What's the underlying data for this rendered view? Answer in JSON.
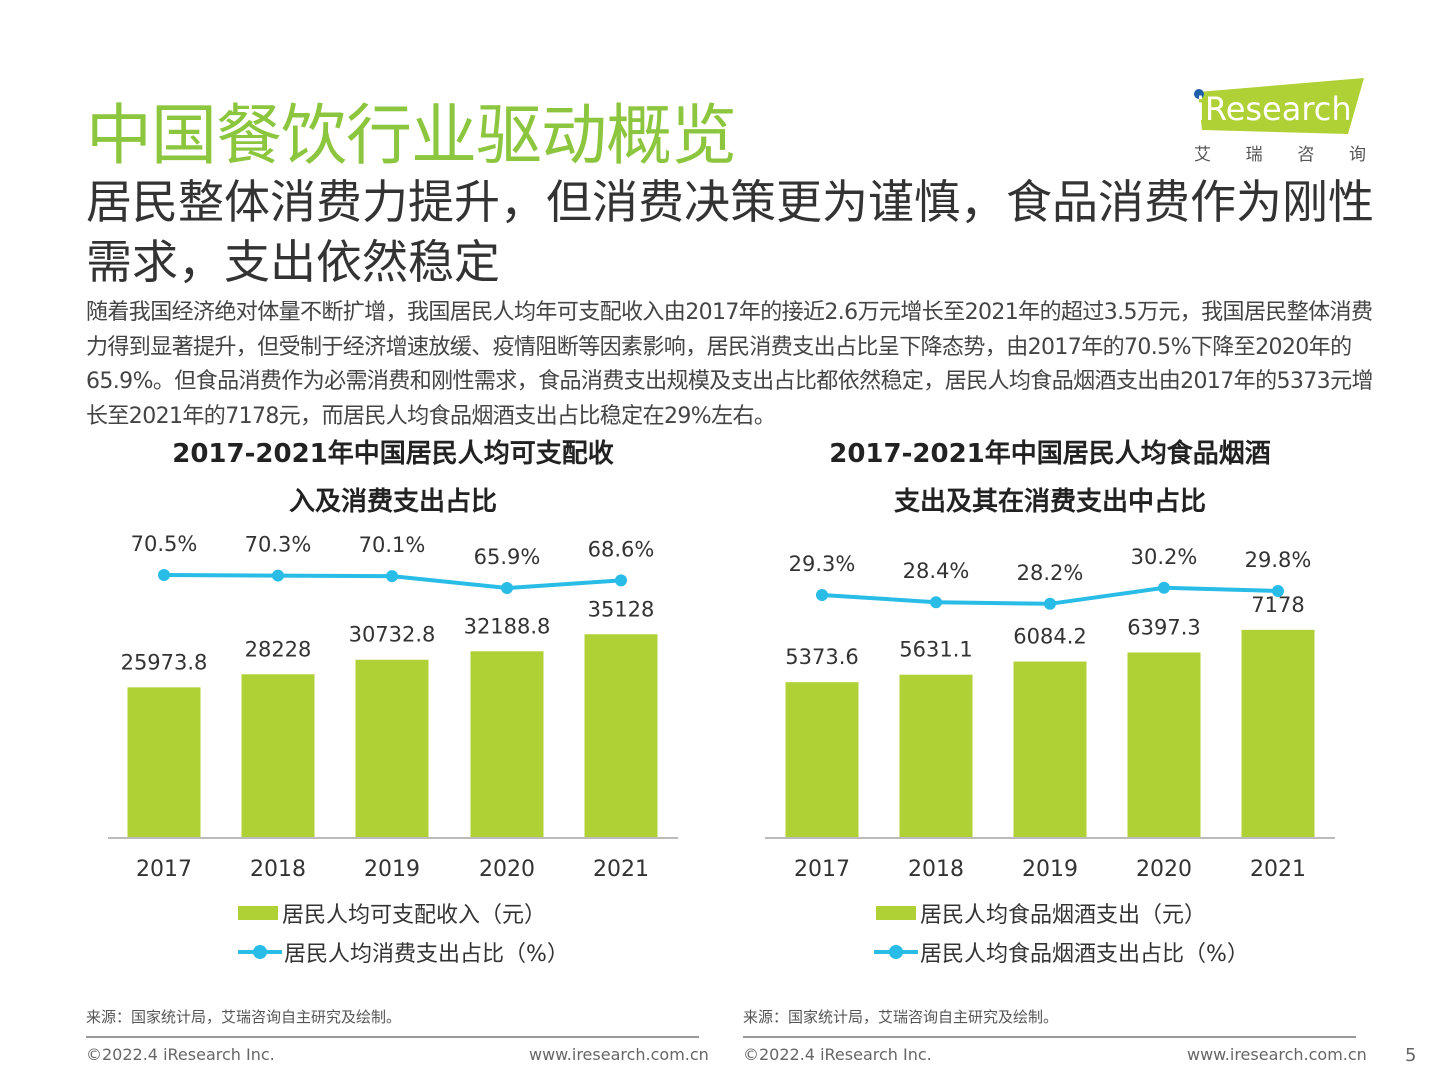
{
  "title": "中国餐饮行业驱动概览",
  "subtitle": "居民整体消费力提升，但消费决策更为谨慎，食品消费作为刚性需求，支出依然稳定",
  "body": "随着我国经济绝对体量不断扩增，我国居民人均年可支配收入由2017年的接近2.6万元增长至2021年的超过3.5万元，我国居民整体消费力得到显著提升，但受制于经济增速放缓、疫情阻断等因素影响，居民消费支出占比呈下降态势，由2017年的70.5%下降至2020年的65.9%。但食品消费作为必需消费和刚性需求，食品消费支出规模及支出占比都依然稳定，居民人均食品烟酒支出由2017年的5373元增长至2021年的7178元，而居民人均食品烟酒支出占比稳定在29%左右。",
  "logo": {
    "text": "iResearch",
    "chinese": [
      "艾",
      "瑞",
      "咨",
      "询"
    ],
    "color": "#afd136",
    "dot_color": "#1f5fa8"
  },
  "colors": {
    "bar": "#afd136",
    "line": "#28bce6",
    "title": "#8cc63f"
  },
  "chart_data": [
    {
      "type": "bar+line",
      "title_lines": [
        "2017-2021年中国居民人均可支配收",
        "入及消费支出占比"
      ],
      "categories": [
        "2017",
        "2018",
        "2019",
        "2020",
        "2021"
      ],
      "series": [
        {
          "name": "居民人均可支配收入（元）",
          "type": "bar",
          "values": [
            25973.8,
            28228,
            30732.8,
            32188.8,
            35128
          ],
          "labels": [
            "25973.8",
            "28228",
            "30732.8",
            "32188.8",
            "35128"
          ]
        },
        {
          "name": "居民人均消费支出占比（%）",
          "type": "line",
          "values": [
            70.5,
            70.3,
            70.1,
            65.9,
            68.6
          ],
          "labels": [
            "70.5%",
            "70.3%",
            "70.1%",
            "65.9%",
            "68.6%"
          ]
        }
      ],
      "legend": "bottom",
      "grid": false,
      "source": "来源：国家统计局，艾瑞咨询自主研究及绘制。"
    },
    {
      "type": "bar+line",
      "title_lines": [
        "2017-2021年中国居民人均食品烟酒",
        "支出及其在消费支出中占比"
      ],
      "categories": [
        "2017",
        "2018",
        "2019",
        "2020",
        "2021"
      ],
      "series": [
        {
          "name": "居民人均食品烟酒支出（元）",
          "type": "bar",
          "values": [
            5373.6,
            5631.1,
            6084.2,
            6397.3,
            7178
          ],
          "labels": [
            "5373.6",
            "5631.1",
            "6084.2",
            "6397.3",
            "7178"
          ]
        },
        {
          "name": "居民人均食品烟酒支出占比（%）",
          "type": "line",
          "values": [
            29.3,
            28.4,
            28.2,
            30.2,
            29.8
          ],
          "labels": [
            "29.3%",
            "28.4%",
            "28.2%",
            "30.2%",
            "29.8%"
          ]
        }
      ],
      "legend": "bottom",
      "grid": false,
      "source": "来源：国家统计局，艾瑞咨询自主研究及绘制。"
    }
  ],
  "footer": {
    "copyright": "©2022.4 iResearch Inc.",
    "url": "www.iresearch.com.cn",
    "page": "5"
  }
}
